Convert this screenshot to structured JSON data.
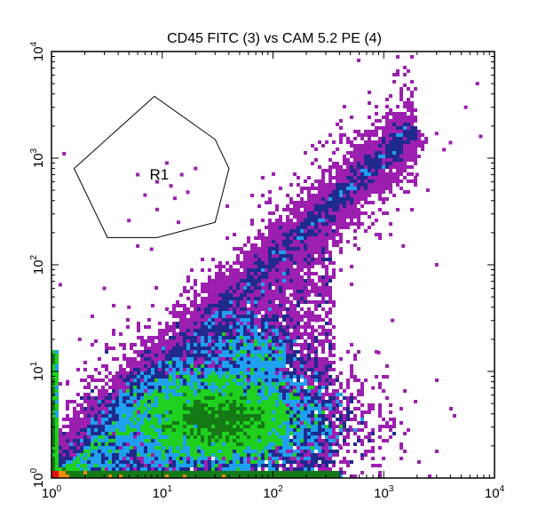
{
  "chart_data": {
    "type": "scatter",
    "title": "CD45 FITC (3) vs CAM 5.2 PE (4)",
    "xlabel": "",
    "ylabel": "",
    "x_scale": "log",
    "y_scale": "log",
    "xlim": [
      1,
      10000
    ],
    "ylim": [
      1,
      10000
    ],
    "x_ticks": [
      {
        "value": 1,
        "base": "10",
        "exp": "0"
      },
      {
        "value": 10,
        "base": "10",
        "exp": "1"
      },
      {
        "value": 100,
        "base": "10",
        "exp": "2"
      },
      {
        "value": 1000,
        "base": "10",
        "exp": "3"
      },
      {
        "value": 10000,
        "base": "10",
        "exp": "4"
      }
    ],
    "y_ticks": [
      {
        "value": 1,
        "base": "10",
        "exp": "0"
      },
      {
        "value": 10,
        "base": "10",
        "exp": "1"
      },
      {
        "value": 100,
        "base": "10",
        "exp": "2"
      },
      {
        "value": 1000,
        "base": "10",
        "exp": "3"
      },
      {
        "value": 10000,
        "base": "10",
        "exp": "4"
      }
    ],
    "grid": false,
    "legend": "none",
    "density_colors": {
      "level1": "#9c1fb0",
      "level2": "#1f2a8c",
      "level3": "#1fa0f0",
      "level4": "#1fd01f",
      "level5": "#157a15",
      "level6": "#f08a00",
      "level7": "#e01010"
    },
    "populations": [
      {
        "x_center": 30,
        "y_center": 3.5,
        "x_spread": 0.35,
        "y_spread": 0.18,
        "count": 2600,
        "peak": "#e01010"
      },
      {
        "x_center": 45,
        "y_center": 3.5,
        "x_spread": 0.55,
        "y_spread": 0.3,
        "count": 2400,
        "peak": "#f08a00"
      },
      {
        "x_center": 70,
        "y_center": 15,
        "x_spread": 0.2,
        "y_spread": 0.18,
        "count": 400,
        "peak": "#f08a00"
      }
    ],
    "gate": {
      "label": "R1",
      "vertices": [
        [
          1.6,
          800
        ],
        [
          8.5,
          3800
        ],
        [
          30,
          1500
        ],
        [
          40,
          800
        ],
        [
          30,
          250
        ],
        [
          9,
          180
        ],
        [
          3.2,
          180
        ]
      ],
      "events": [
        [
          6,
          700
        ],
        [
          9,
          600
        ],
        [
          12,
          550
        ],
        [
          15,
          700
        ],
        [
          11,
          900
        ],
        [
          7,
          450
        ],
        [
          13,
          420
        ],
        [
          17,
          480
        ],
        [
          5,
          260
        ],
        [
          14,
          250
        ],
        [
          9,
          330
        ],
        [
          20,
          800
        ]
      ]
    },
    "outliers": [
      [
        1000,
        600
      ],
      [
        2000,
        700
      ],
      [
        2500,
        500
      ],
      [
        3000,
        1700
      ],
      [
        3500,
        1200
      ],
      [
        4000,
        1400
      ],
      [
        5500,
        3000
      ],
      [
        7000,
        5000
      ],
      [
        7500,
        1600
      ],
      [
        1500,
        150
      ],
      [
        3000,
        100
      ],
      [
        1200,
        30
      ],
      [
        800,
        7
      ],
      [
        1.3,
        1100
      ],
      [
        1.2,
        65
      ],
      [
        1.8,
        20
      ],
      [
        1.4,
        8
      ],
      [
        500,
        3
      ],
      [
        400,
        2
      ],
      [
        300,
        12
      ],
      [
        200,
        60
      ],
      [
        6,
        150
      ],
      [
        3,
        60
      ],
      [
        5,
        40
      ],
      [
        8,
        140
      ],
      [
        900,
        15
      ],
      [
        250,
        30
      ]
    ]
  }
}
